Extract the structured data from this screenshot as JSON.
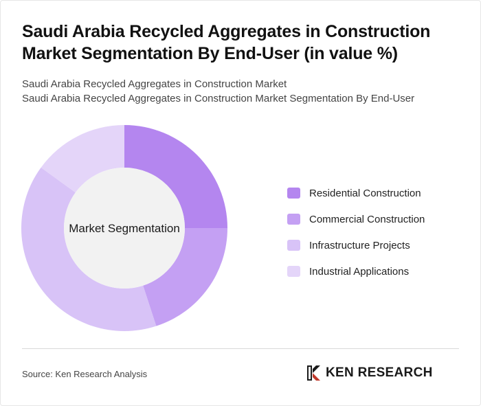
{
  "header": {
    "title": "Saudi Arabia Recycled Aggregates in Construction Market Segmentation By End-User (in value %)",
    "subtitle_line1": "Saudi Arabia Recycled Aggregates in Construction Market",
    "subtitle_line2": "Saudi Arabia Recycled Aggregates in Construction Market Segmentation By End-User"
  },
  "chart_data": {
    "type": "pie",
    "center_label": "Market Segmentation",
    "categories": [
      "Residential Construction",
      "Commercial Construction",
      "Infrastructure Projects",
      "Industrial Applications"
    ],
    "values": [
      25,
      20,
      40,
      15
    ],
    "colors": [
      "#b486ef",
      "#c4a0f3",
      "#d8c3f7",
      "#e4d5f9"
    ],
    "center_color": "#f2f2f2",
    "legend_position": "right"
  },
  "footer": {
    "source": "Source: Ken Research Analysis",
    "brand": "KEN RESEARCH"
  }
}
